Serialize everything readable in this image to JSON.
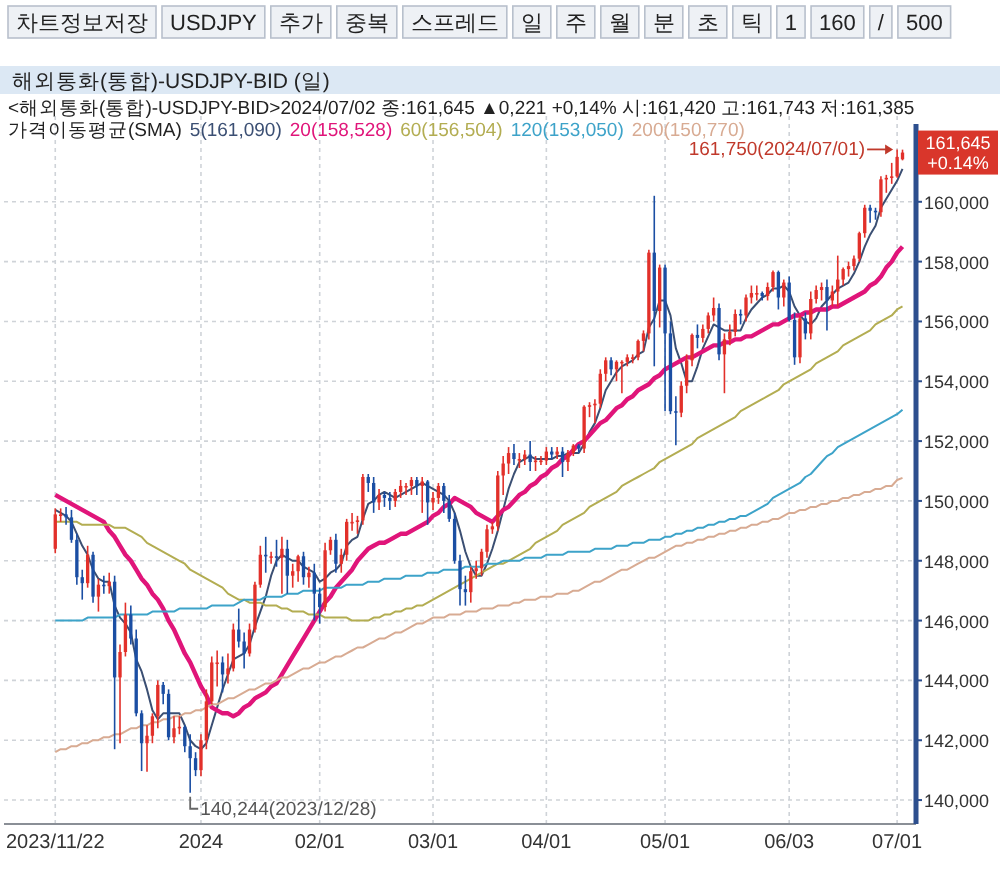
{
  "chart_data": {
    "type": "candlestick",
    "title": "해외통화(통합)-USDJPY-BID (일)",
    "subtitle": "<해외통화(통합)-USDJPY-BID>2024/07/02 종:161,645 ▲0,221 +0,14% 시:161,420 고:161,743 저:161,385",
    "legend_title": "가격이동평균(SMA)",
    "legend": "top left",
    "grid": true,
    "ylim": [
      139200,
      162600
    ],
    "yticks": [
      {
        "value": 140000,
        "label": "140,000"
      },
      {
        "value": 142000,
        "label": "142,000"
      },
      {
        "value": 144000,
        "label": "144,000"
      },
      {
        "value": 146000,
        "label": "146,000"
      },
      {
        "value": 148000,
        "label": "148,000"
      },
      {
        "value": 150000,
        "label": "150,000"
      },
      {
        "value": 152000,
        "label": "152,000"
      },
      {
        "value": 154000,
        "label": "154,000"
      },
      {
        "value": 156000,
        "label": "156,000"
      },
      {
        "value": 158000,
        "label": "158,000"
      },
      {
        "value": 160000,
        "label": "160,000"
      }
    ],
    "categories": [
      "2023/11/22",
      null,
      null,
      null,
      null,
      null,
      null,
      null,
      null,
      null,
      null,
      null,
      null,
      null,
      null,
      null,
      null,
      null,
      null,
      null,
      null,
      null,
      null,
      null,
      null,
      null,
      null,
      "2024",
      null,
      null,
      null,
      null,
      null,
      null,
      null,
      null,
      null,
      null,
      null,
      null,
      null,
      null,
      null,
      null,
      null,
      null,
      null,
      null,
      null,
      "02/01",
      null,
      null,
      null,
      null,
      null,
      null,
      null,
      null,
      null,
      null,
      null,
      null,
      null,
      null,
      null,
      null,
      null,
      null,
      null,
      null,
      "03/01",
      null,
      null,
      null,
      null,
      null,
      null,
      null,
      null,
      null,
      null,
      null,
      null,
      null,
      null,
      null,
      null,
      null,
      null,
      null,
      null,
      "04/01",
      null,
      null,
      null,
      null,
      null,
      null,
      null,
      null,
      null,
      null,
      null,
      null,
      null,
      null,
      null,
      null,
      null,
      null,
      null,
      null,
      null,
      "05/01",
      null,
      null,
      null,
      null,
      null,
      null,
      null,
      null,
      null,
      null,
      null,
      null,
      null,
      null,
      null,
      null,
      null,
      null,
      null,
      null,
      null,
      null,
      "06/03",
      null,
      null,
      null,
      null,
      null,
      null,
      null,
      null,
      null,
      null,
      null,
      null,
      null,
      null,
      null,
      null,
      null,
      null,
      null,
      "07/01",
      null
    ],
    "ohlc": [
      [
        148400,
        149750,
        148250,
        149550
      ],
      [
        149550,
        149750,
        149300,
        149550
      ],
      [
        149550,
        149800,
        149200,
        149450
      ],
      [
        149450,
        149700,
        148600,
        148700
      ],
      [
        148700,
        148900,
        147200,
        147450
      ],
      [
        147450,
        147700,
        146700,
        147250
      ],
      [
        147250,
        148500,
        147100,
        148200
      ],
      [
        148200,
        148300,
        146600,
        146800
      ],
      [
        146800,
        147400,
        146300,
        147200
      ],
      [
        147200,
        147500,
        146900,
        147150
      ],
      [
        147150,
        147600,
        146900,
        147300
      ],
      [
        147300,
        147500,
        141700,
        144100
      ],
      [
        144100,
        145200,
        141900,
        144950
      ],
      [
        144950,
        146600,
        144800,
        146200
      ],
      [
        146200,
        146500,
        145200,
        145400
      ],
      [
        145400,
        145700,
        142800,
        142900
      ],
      [
        142900,
        143000,
        140970,
        141900
      ],
      [
        141900,
        142500,
        140950,
        142150
      ],
      [
        142150,
        142900,
        141900,
        142800
      ],
      [
        142800,
        144000,
        142400,
        143850
      ],
      [
        143850,
        143950,
        143200,
        143550
      ],
      [
        143550,
        143700,
        142000,
        142100
      ],
      [
        142100,
        142800,
        141900,
        142400
      ],
      [
        142400,
        142800,
        142200,
        142450
      ],
      [
        142450,
        142500,
        141600,
        141800
      ],
      [
        141800,
        142200,
        140244,
        141400
      ],
      [
        141400,
        141600,
        140800,
        141000
      ],
      [
        141000,
        142200,
        140800,
        142000
      ],
      [
        142000,
        143700,
        141700,
        143300
      ],
      [
        143300,
        144800,
        143200,
        144600
      ],
      [
        144600,
        145000,
        143800,
        144600
      ],
      [
        144600,
        144800,
        143600,
        144200
      ],
      [
        144200,
        144900,
        143900,
        144400
      ],
      [
        144400,
        145900,
        144300,
        145700
      ],
      [
        145700,
        146400,
        145100,
        145300
      ],
      [
        145300,
        145600,
        144400,
        144900
      ],
      [
        144900,
        145900,
        144800,
        145700
      ],
      [
        145700,
        147300,
        145600,
        147200
      ],
      [
        147200,
        148500,
        147100,
        148200
      ],
      [
        148200,
        148800,
        147600,
        148150
      ],
      [
        148150,
        148300,
        147900,
        148150
      ],
      [
        148150,
        148700,
        147800,
        148100
      ],
      [
        148100,
        148800,
        146900,
        148400
      ],
      [
        148400,
        148700,
        146900,
        147500
      ],
      [
        147500,
        147900,
        147100,
        147650
      ],
      [
        147650,
        148200,
        147300,
        148150
      ],
      [
        148150,
        148300,
        147200,
        147450
      ],
      [
        147450,
        147800,
        147100,
        147600
      ],
      [
        147600,
        147900,
        146000,
        146900
      ],
      [
        146900,
        147100,
        145900,
        146450
      ],
      [
        146450,
        148600,
        146300,
        148350
      ],
      [
        148350,
        148800,
        148200,
        148700
      ],
      [
        148700,
        148900,
        147600,
        147900
      ],
      [
        147900,
        148400,
        147600,
        148200
      ],
      [
        148200,
        149400,
        148000,
        149300
      ],
      [
        149300,
        149600,
        149000,
        149300
      ],
      [
        149300,
        149500,
        148900,
        149350
      ],
      [
        149350,
        150900,
        149200,
        150800
      ],
      [
        150800,
        150900,
        150300,
        150600
      ],
      [
        150600,
        150800,
        149600,
        149950
      ],
      [
        149950,
        150400,
        149700,
        150200
      ],
      [
        150200,
        150300,
        149800,
        150100
      ],
      [
        150100,
        150300,
        149700,
        150000
      ],
      [
        150000,
        150400,
        149800,
        150300
      ],
      [
        150300,
        150700,
        150100,
        150500
      ],
      [
        150500,
        150600,
        150200,
        150500
      ],
      [
        150500,
        150800,
        150200,
        150700
      ],
      [
        150700,
        150800,
        150200,
        150500
      ],
      [
        150500,
        150800,
        149600,
        150650
      ],
      [
        150650,
        150700,
        149200,
        149950
      ],
      [
        149950,
        150300,
        149700,
        150100
      ],
      [
        150100,
        150600,
        149900,
        150500
      ],
      [
        150500,
        150600,
        149600,
        150000
      ],
      [
        150000,
        150200,
        149300,
        149400
      ],
      [
        149400,
        149600,
        147900,
        148000
      ],
      [
        148000,
        148200,
        146500,
        147050
      ],
      [
        147050,
        147500,
        146500,
        146950
      ],
      [
        146950,
        147800,
        146600,
        147650
      ],
      [
        147650,
        148000,
        147400,
        147750
      ],
      [
        147750,
        148400,
        147500,
        148300
      ],
      [
        148300,
        149200,
        148100,
        149050
      ],
      [
        149050,
        149300,
        148900,
        149150
      ],
      [
        149150,
        151000,
        149000,
        150850
      ],
      [
        150850,
        151500,
        150200,
        151250
      ],
      [
        151250,
        151800,
        150900,
        151600
      ],
      [
        151600,
        151900,
        151200,
        151400
      ],
      [
        151400,
        151600,
        151100,
        151400
      ],
      [
        151400,
        151700,
        151200,
        151550
      ],
      [
        151550,
        152000,
        151000,
        151300
      ],
      [
        151300,
        151500,
        151000,
        151350
      ],
      [
        151350,
        151500,
        151200,
        151350
      ],
      [
        151350,
        151800,
        151200,
        151650
      ],
      [
        151650,
        151800,
        151400,
        151550
      ],
      [
        151550,
        151800,
        151400,
        151650
      ],
      [
        151650,
        151800,
        150800,
        151300
      ],
      [
        151300,
        151700,
        151000,
        151600
      ],
      [
        151600,
        151900,
        151500,
        151850
      ],
      [
        151850,
        151900,
        151600,
        151750
      ],
      [
        151750,
        153200,
        151600,
        153150
      ],
      [
        153150,
        153300,
        152800,
        153200
      ],
      [
        153200,
        153400,
        152600,
        153250
      ],
      [
        153250,
        154400,
        153100,
        154250
      ],
      [
        154250,
        154800,
        154000,
        154700
      ],
      [
        154700,
        154800,
        154200,
        154400
      ],
      [
        154400,
        154700,
        154000,
        154650
      ],
      [
        154650,
        154700,
        153600,
        154650
      ],
      [
        154650,
        154900,
        154500,
        154800
      ],
      [
        154800,
        154900,
        154600,
        154800
      ],
      [
        154800,
        155400,
        154700,
        155350
      ],
      [
        155350,
        155700,
        155000,
        155600
      ],
      [
        155600,
        158400,
        155400,
        158300
      ],
      [
        158300,
        160200,
        154500,
        156350
      ],
      [
        156350,
        157900,
        155800,
        157800
      ],
      [
        157800,
        157900,
        153000,
        155600
      ],
      [
        155600,
        156000,
        152900,
        153000
      ],
      [
        153000,
        153500,
        151860,
        152950
      ],
      [
        152950,
        154000,
        152800,
        153850
      ],
      [
        153850,
        154900,
        153600,
        154700
      ],
      [
        154700,
        155600,
        154500,
        155550
      ],
      [
        155550,
        155900,
        155100,
        155450
      ],
      [
        155450,
        155900,
        155300,
        155750
      ],
      [
        155750,
        156300,
        155600,
        156200
      ],
      [
        156200,
        156800,
        156000,
        156450
      ],
      [
        156450,
        156600,
        154700,
        154900
      ],
      [
        154900,
        155600,
        153600,
        155400
      ],
      [
        155400,
        155900,
        155200,
        155650
      ],
      [
        155650,
        156400,
        155500,
        156250
      ],
      [
        156250,
        156400,
        155900,
        156200
      ],
      [
        156200,
        156900,
        156000,
        156800
      ],
      [
        156800,
        157200,
        156600,
        156950
      ],
      [
        156950,
        157200,
        156700,
        156950
      ],
      [
        156950,
        157000,
        156700,
        156850
      ],
      [
        156850,
        157300,
        156700,
        157150
      ],
      [
        157150,
        157700,
        157000,
        157650
      ],
      [
        157650,
        157700,
        156400,
        156800
      ],
      [
        156800,
        157400,
        156500,
        157300
      ],
      [
        157300,
        157500,
        156000,
        156050
      ],
      [
        156050,
        156300,
        154550,
        154800
      ],
      [
        154800,
        156200,
        154600,
        156100
      ],
      [
        156100,
        156300,
        155400,
        155600
      ],
      [
        155600,
        157000,
        155400,
        156750
      ],
      [
        156750,
        157200,
        156600,
        157050
      ],
      [
        157050,
        157300,
        156700,
        157150
      ],
      [
        157150,
        157400,
        155700,
        156700
      ],
      [
        156700,
        157200,
        156500,
        157000
      ],
      [
        157000,
        158200,
        156500,
        157400
      ],
      [
        157400,
        157800,
        157200,
        157750
      ],
      [
        157750,
        158000,
        157500,
        157850
      ],
      [
        157850,
        158200,
        157700,
        158100
      ],
      [
        158100,
        159000,
        158000,
        158950
      ],
      [
        158950,
        159900,
        158800,
        159800
      ],
      [
        159800,
        159900,
        159300,
        159700
      ],
      [
        159700,
        159800,
        159400,
        159650
      ],
      [
        159650,
        160850,
        159500,
        160750
      ],
      [
        160750,
        160900,
        160300,
        160800
      ],
      [
        160800,
        161300,
        160600,
        160850
      ],
      [
        160850,
        161750,
        160800,
        161500
      ],
      [
        161420,
        161743,
        161385,
        161645
      ]
    ],
    "series": [
      {
        "type": "line",
        "name": "5(161,090)",
        "color": "#3b4f73",
        "values": [
          149700,
          149600,
          149500,
          149300,
          148900,
          148500,
          148200,
          147700,
          147400,
          147300,
          147300,
          146500,
          146100,
          145900,
          145600,
          144700,
          144300,
          143700,
          143000,
          142700,
          142900,
          142900,
          142900,
          142900,
          142500,
          142000,
          141800,
          141700,
          141900,
          142500,
          143100,
          143700,
          144200,
          144700,
          144800,
          144900,
          145200,
          145800,
          146300,
          146800,
          147500,
          148000,
          148200,
          148100,
          148000,
          148000,
          147800,
          147700,
          147600,
          147300,
          147400,
          147600,
          147700,
          147900,
          148500,
          148700,
          148800,
          149400,
          149900,
          150000,
          150200,
          150300,
          150200,
          150100,
          150200,
          150300,
          150400,
          150500,
          150600,
          150500,
          150400,
          150300,
          150200,
          150000,
          149600,
          149000,
          148300,
          147800,
          147500,
          147500,
          147900,
          148400,
          149000,
          149700,
          150400,
          150900,
          151300,
          151400,
          151500,
          151400,
          151400,
          151400,
          151400,
          151500,
          151500,
          151600,
          151600,
          151600,
          151900,
          152300,
          152600,
          153100,
          153700,
          154000,
          154300,
          154500,
          154600,
          154700,
          154900,
          155000,
          155800,
          156100,
          156700,
          156700,
          156200,
          155100,
          154600,
          154000,
          154000,
          154500,
          155100,
          155500,
          155900,
          155800,
          155700,
          155700,
          155700,
          155700,
          156100,
          156400,
          156600,
          156800,
          156900,
          157100,
          157100,
          157200,
          157000,
          156500,
          156200,
          156000,
          155900,
          156100,
          156500,
          156700,
          156900,
          157100,
          157200,
          157300,
          157600,
          158000,
          158500,
          158900,
          159200,
          159800,
          160100,
          160400,
          160700,
          161100
        ]
      },
      {
        "type": "line",
        "name": "20(158,528)",
        "color": "#e0157a",
        "values": [
          150200,
          150100,
          150000,
          149900,
          149800,
          149700,
          149600,
          149500,
          149400,
          149300,
          149000,
          148800,
          148500,
          148200,
          148000,
          147700,
          147400,
          147200,
          146900,
          146700,
          146400,
          146000,
          145700,
          145300,
          144900,
          144600,
          144200,
          143800,
          143500,
          143100,
          143000,
          142900,
          142900,
          142800,
          142900,
          143100,
          143200,
          143400,
          143500,
          143600,
          143800,
          143900,
          144200,
          144500,
          144800,
          145100,
          145400,
          145700,
          146000,
          146300,
          146600,
          146800,
          147100,
          147300,
          147500,
          147700,
          148000,
          148200,
          148400,
          148500,
          148600,
          148600,
          148700,
          148800,
          148900,
          148900,
          149000,
          149100,
          149200,
          149300,
          149500,
          149600,
          149800,
          149900,
          150100,
          150000,
          149900,
          149800,
          149600,
          149500,
          149400,
          149300,
          149500,
          149700,
          149800,
          150000,
          150200,
          150300,
          150500,
          150600,
          150800,
          150900,
          151100,
          151200,
          151400,
          151500,
          151700,
          151900,
          152000,
          152200,
          152400,
          152600,
          152700,
          152900,
          153100,
          153200,
          153400,
          153500,
          153700,
          153800,
          153900,
          154100,
          154200,
          154400,
          154500,
          154600,
          154700,
          154800,
          154800,
          154900,
          155000,
          155100,
          155200,
          155200,
          155300,
          155300,
          155400,
          155400,
          155500,
          155500,
          155600,
          155700,
          155800,
          155900,
          155900,
          156000,
          156100,
          156200,
          156200,
          156300,
          156300,
          156400,
          156400,
          156400,
          156500,
          156500,
          156600,
          156700,
          156800,
          156900,
          157000,
          157200,
          157300,
          157500,
          157800,
          158000,
          158300,
          158500
        ]
      },
      {
        "type": "line",
        "name": "60(156,504)",
        "color": "#b3ad52",
        "values": [
          149300,
          149300,
          149300,
          149300,
          149300,
          149200,
          149200,
          149200,
          149200,
          149200,
          149200,
          149100,
          149100,
          149100,
          149000,
          148900,
          148800,
          148600,
          148500,
          148400,
          148300,
          148200,
          148100,
          148000,
          147900,
          147700,
          147600,
          147500,
          147400,
          147300,
          147200,
          147100,
          146900,
          146800,
          146700,
          146700,
          146600,
          146600,
          146600,
          146500,
          146500,
          146500,
          146400,
          146400,
          146300,
          146300,
          146300,
          146200,
          146200,
          146200,
          146100,
          146100,
          146100,
          146100,
          146100,
          146000,
          146000,
          146000,
          146000,
          146100,
          146100,
          146200,
          146200,
          146300,
          146300,
          146400,
          146400,
          146500,
          146500,
          146600,
          146700,
          146800,
          146900,
          147000,
          147100,
          147200,
          147300,
          147400,
          147500,
          147600,
          147700,
          147800,
          147900,
          147900,
          148000,
          148100,
          148200,
          148300,
          148400,
          148600,
          148700,
          148800,
          148900,
          149000,
          149200,
          149300,
          149400,
          149500,
          149600,
          149800,
          149900,
          150000,
          150100,
          150200,
          150300,
          150500,
          150600,
          150700,
          150800,
          150900,
          151000,
          151100,
          151300,
          151400,
          151500,
          151600,
          151700,
          151800,
          151900,
          152100,
          152200,
          152300,
          152400,
          152500,
          152600,
          152700,
          152800,
          153000,
          153100,
          153200,
          153300,
          153400,
          153500,
          153600,
          153700,
          153900,
          154000,
          154100,
          154200,
          154300,
          154400,
          154600,
          154700,
          154800,
          154900,
          155000,
          155200,
          155300,
          155400,
          155500,
          155600,
          155700,
          155900,
          156000,
          156100,
          156200,
          156400,
          156500
        ]
      },
      {
        "type": "line",
        "name": "120(153,050)",
        "color": "#3da3c9",
        "values": [
          146000,
          146000,
          146000,
          146000,
          146000,
          146000,
          146100,
          146100,
          146100,
          146100,
          146100,
          146100,
          146200,
          146200,
          146200,
          146200,
          146200,
          146200,
          146300,
          146300,
          146300,
          146300,
          146300,
          146400,
          146400,
          146400,
          146400,
          146400,
          146400,
          146500,
          146500,
          146500,
          146500,
          146500,
          146600,
          146700,
          146700,
          146700,
          146700,
          146800,
          146800,
          146800,
          146800,
          146900,
          146900,
          146900,
          147000,
          147000,
          147000,
          147000,
          147100,
          147100,
          147100,
          147100,
          147200,
          147200,
          147200,
          147200,
          147300,
          147300,
          147300,
          147400,
          147400,
          147400,
          147400,
          147500,
          147500,
          147500,
          147500,
          147600,
          147600,
          147600,
          147700,
          147700,
          147700,
          147700,
          147800,
          147800,
          147800,
          147800,
          147900,
          147900,
          147900,
          148000,
          148000,
          148000,
          148000,
          148100,
          148100,
          148100,
          148100,
          148200,
          148200,
          148200,
          148200,
          148300,
          148300,
          148300,
          148300,
          148300,
          148400,
          148400,
          148400,
          148400,
          148500,
          148500,
          148500,
          148600,
          148600,
          148600,
          148700,
          148700,
          148700,
          148800,
          148800,
          148900,
          148900,
          149000,
          149000,
          149100,
          149100,
          149200,
          149200,
          149300,
          149300,
          149400,
          149400,
          149500,
          149500,
          149600,
          149700,
          149800,
          149900,
          150100,
          150200,
          150300,
          150400,
          150500,
          150600,
          150800,
          150900,
          151100,
          151300,
          151500,
          151600,
          151800,
          151900,
          152000,
          152100,
          152200,
          152300,
          152400,
          152500,
          152600,
          152700,
          152800,
          152900,
          153050
        ]
      },
      {
        "type": "line",
        "name": "200(150,770)",
        "color": "#d8ab93",
        "values": [
          141600,
          141700,
          141700,
          141800,
          141800,
          141900,
          141900,
          142000,
          142000,
          142100,
          142100,
          142200,
          142200,
          142300,
          142400,
          142400,
          142500,
          142500,
          142600,
          142600,
          142700,
          142700,
          142800,
          142800,
          142900,
          142900,
          143000,
          143000,
          143100,
          143200,
          143200,
          143300,
          143400,
          143400,
          143500,
          143600,
          143700,
          143700,
          143800,
          143900,
          143900,
          144000,
          144100,
          144100,
          144200,
          144300,
          144400,
          144400,
          144500,
          144600,
          144600,
          144700,
          144800,
          144800,
          144900,
          145000,
          145100,
          145100,
          145200,
          145300,
          145400,
          145400,
          145500,
          145600,
          145600,
          145700,
          145800,
          145900,
          145900,
          146000,
          146100,
          146100,
          146100,
          146200,
          146200,
          146200,
          146300,
          146300,
          146300,
          146400,
          146400,
          146400,
          146500,
          146500,
          146500,
          146600,
          146600,
          146700,
          146700,
          146700,
          146800,
          146800,
          146800,
          146900,
          146900,
          146900,
          147000,
          147000,
          147100,
          147200,
          147300,
          147300,
          147400,
          147500,
          147600,
          147700,
          147700,
          147800,
          147900,
          148000,
          148100,
          148100,
          148200,
          148300,
          148400,
          148500,
          148500,
          148600,
          148600,
          148700,
          148700,
          148800,
          148800,
          148900,
          148900,
          149000,
          149000,
          149100,
          149100,
          149200,
          149200,
          149300,
          149300,
          149400,
          149400,
          149500,
          149600,
          149600,
          149700,
          149700,
          149800,
          149800,
          149900,
          149900,
          150000,
          150000,
          150100,
          150100,
          150200,
          150200,
          150300,
          150300,
          150400,
          150400,
          150500,
          150500,
          150700,
          150770
        ]
      }
    ],
    "annotations": [
      "차트정보저장",
      "USDJPY",
      "추가",
      "중복",
      "스프레드",
      "일",
      "주",
      "월",
      "분",
      "초",
      "틱",
      "1",
      "160",
      "/",
      "500",
      {
        "text": "161,750(2024/07/01)",
        "x": "07/01",
        "y": 161750
      },
      "140,244(2023/12/28)",
      "161,645\n+0.14%"
    ]
  }
}
